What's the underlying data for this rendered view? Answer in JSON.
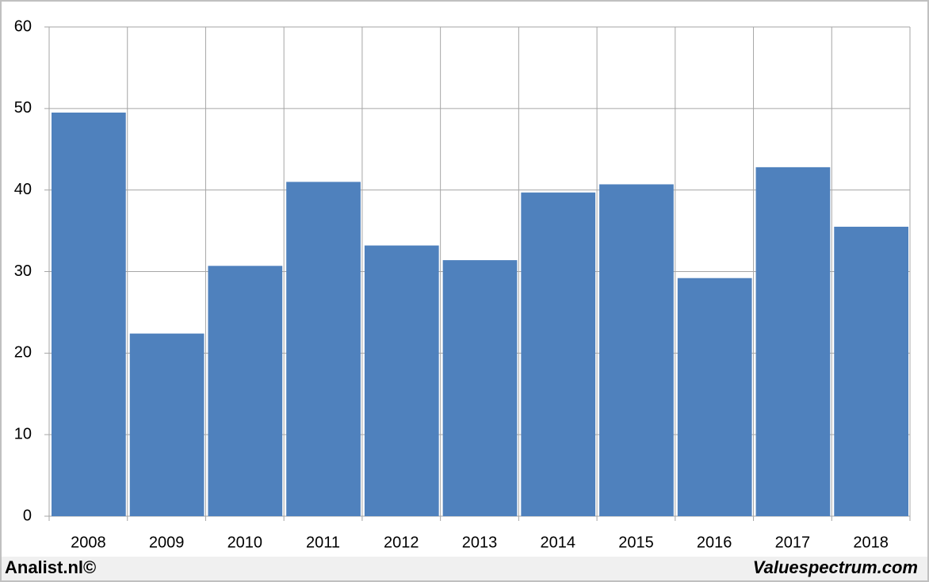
{
  "chart_data": {
    "type": "bar",
    "categories": [
      "2008",
      "2009",
      "2010",
      "2011",
      "2012",
      "2013",
      "2014",
      "2015",
      "2016",
      "2017",
      "2018"
    ],
    "values": [
      49.5,
      22.4,
      30.7,
      41.0,
      33.2,
      31.4,
      39.7,
      40.7,
      29.2,
      42.8,
      35.5
    ],
    "color": "#4f81bd",
    "ylim": [
      0,
      60
    ],
    "yticks": [
      0,
      10,
      20,
      30,
      40,
      50,
      60
    ],
    "grid": true,
    "source_left": "Analist.nl©",
    "source_right": "Valuespectrum.com"
  }
}
